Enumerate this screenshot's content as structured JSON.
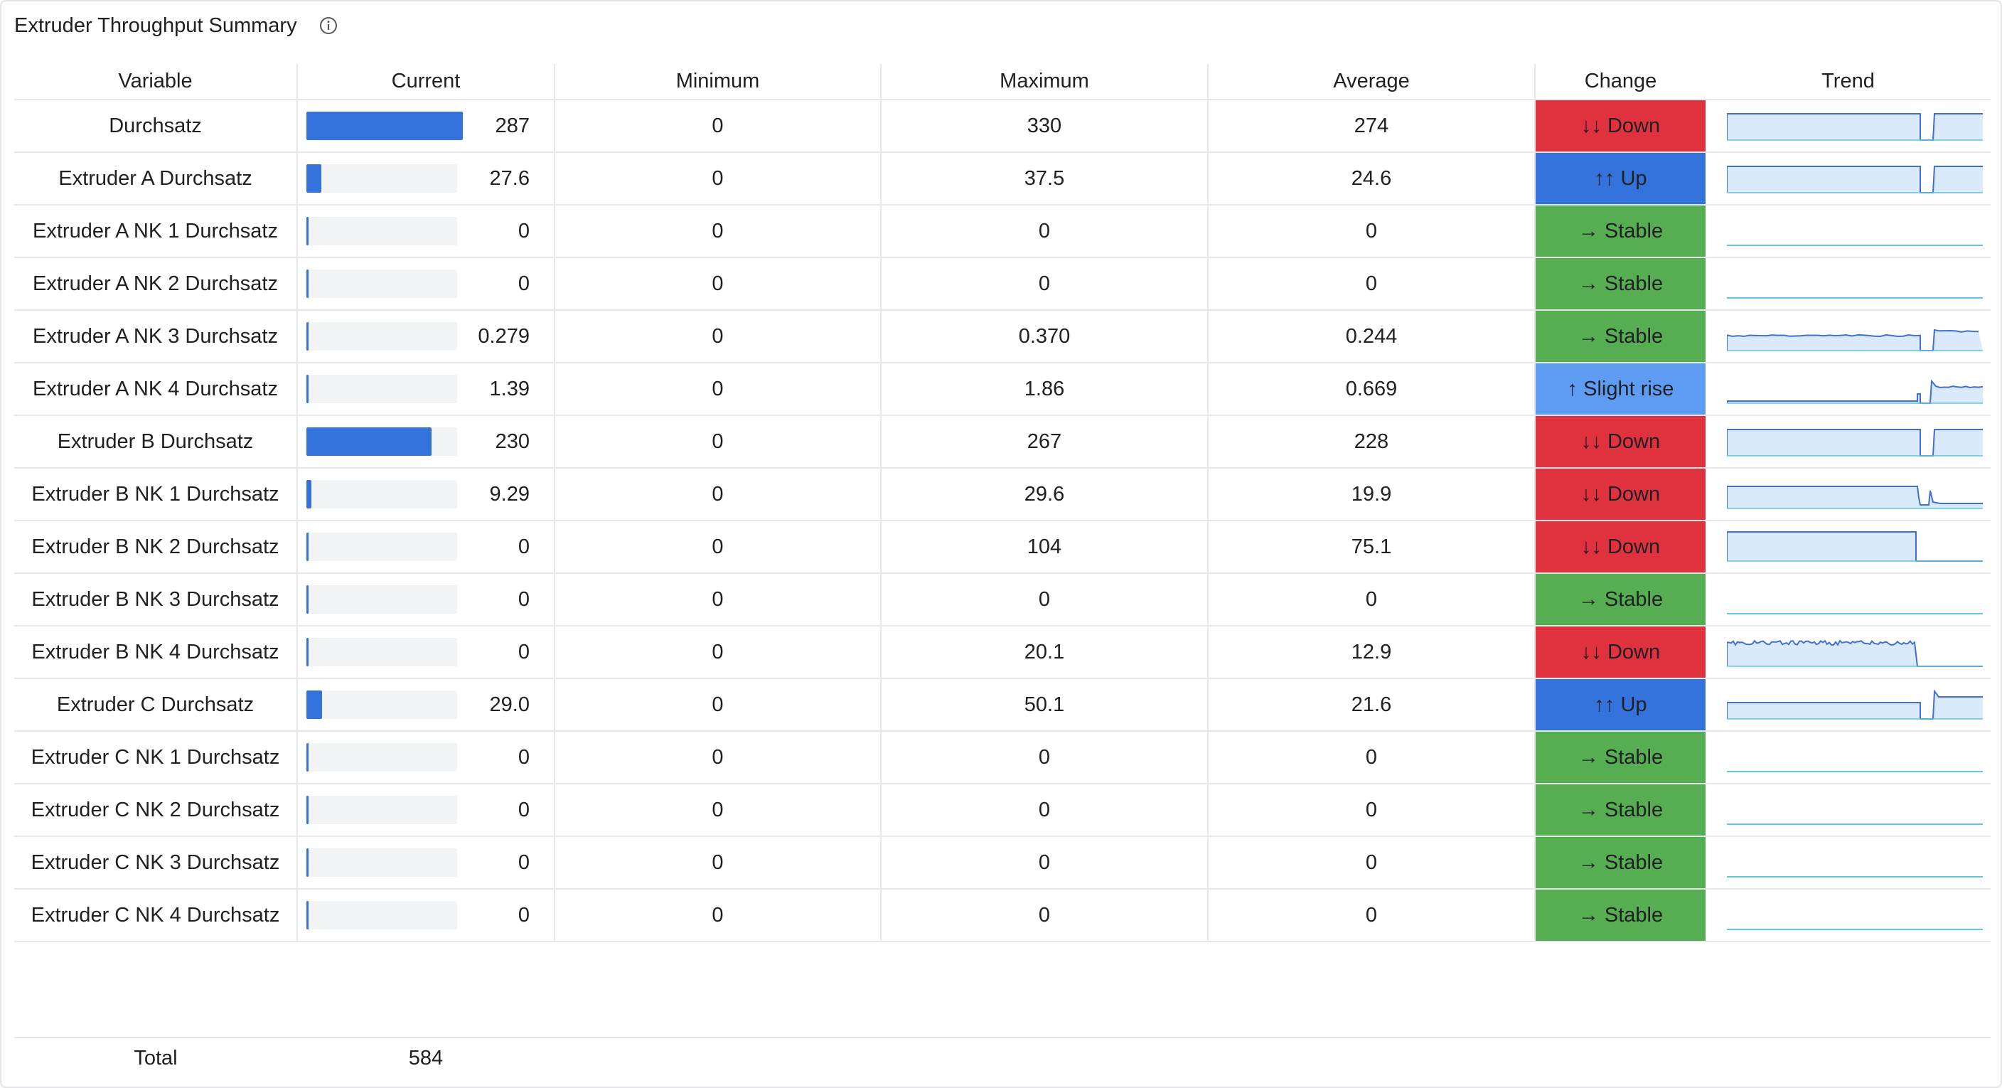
{
  "panel": {
    "title": "Extruder Throughput Summary",
    "info_icon": "info-circle-icon"
  },
  "columns": [
    "Variable",
    "Current",
    "Minimum",
    "Maximum",
    "Average",
    "Change",
    "Trend"
  ],
  "colors": {
    "bar": "#3373db",
    "bar_track": "#f2f3f4",
    "down": "#e0313f",
    "up": "#3373db",
    "stable": "#56ad52",
    "slight_rise": "#5d9cf2",
    "spark_line_active": "#3f6fd8",
    "spark_fill": "#dbeafa",
    "spark_line_flat": "#64c3df"
  },
  "scale_max": 287,
  "rows": [
    {
      "variable": "Durchsatz",
      "current": "287",
      "current_value": 287,
      "minimum": "0",
      "maximum": "330",
      "average": "274",
      "change": "↓↓ Down",
      "change_type": "down",
      "trend": "full"
    },
    {
      "variable": "Extruder A Durchsatz",
      "current": "27.6",
      "current_value": 27.6,
      "minimum": "0",
      "maximum": "37.5",
      "average": "24.6",
      "change": "↑↑ Up",
      "change_type": "up",
      "trend": "full"
    },
    {
      "variable": "Extruder A NK 1 Durchsatz",
      "current": "0",
      "current_value": 0,
      "minimum": "0",
      "maximum": "0",
      "average": "0",
      "change": "→ Stable",
      "change_type": "stable",
      "trend": "flat"
    },
    {
      "variable": "Extruder A NK 2 Durchsatz",
      "current": "0",
      "current_value": 0,
      "minimum": "0",
      "maximum": "0",
      "average": "0",
      "change": "→ Stable",
      "change_type": "stable",
      "trend": "flat"
    },
    {
      "variable": "Extruder A NK 3 Durchsatz",
      "current": "0.279",
      "current_value": 0.279,
      "minimum": "0",
      "maximum": "0.370",
      "average": "0.244",
      "change": "→ Stable",
      "change_type": "stable",
      "trend": "mid"
    },
    {
      "variable": "Extruder A NK 4 Durchsatz",
      "current": "1.39",
      "current_value": 1.39,
      "minimum": "0",
      "maximum": "1.86",
      "average": "0.669",
      "change": "↑ Slight rise",
      "change_type": "slight_rise",
      "trend": "rise"
    },
    {
      "variable": "Extruder B Durchsatz",
      "current": "230",
      "current_value": 230,
      "minimum": "0",
      "maximum": "267",
      "average": "228",
      "change": "↓↓ Down",
      "change_type": "down",
      "trend": "full"
    },
    {
      "variable": "Extruder B NK 1 Durchsatz",
      "current": "9.29",
      "current_value": 9.29,
      "minimum": "0",
      "maximum": "29.6",
      "average": "19.9",
      "change": "↓↓ Down",
      "change_type": "down",
      "trend": "drop_low"
    },
    {
      "variable": "Extruder B NK 2 Durchsatz",
      "current": "0",
      "current_value": 0,
      "minimum": "0",
      "maximum": "104",
      "average": "75.1",
      "change": "↓↓ Down",
      "change_type": "down",
      "trend": "drop_zero"
    },
    {
      "variable": "Extruder B NK 3 Durchsatz",
      "current": "0",
      "current_value": 0,
      "minimum": "0",
      "maximum": "0",
      "average": "0",
      "change": "→ Stable",
      "change_type": "stable",
      "trend": "flat"
    },
    {
      "variable": "Extruder B NK 4 Durchsatz",
      "current": "0",
      "current_value": 0,
      "minimum": "0",
      "maximum": "20.1",
      "average": "12.9",
      "change": "↓↓ Down",
      "change_type": "down",
      "trend": "noisy_drop"
    },
    {
      "variable": "Extruder C Durchsatz",
      "current": "29.0",
      "current_value": 29.0,
      "minimum": "0",
      "maximum": "50.1",
      "average": "21.6",
      "change": "↑↑ Up",
      "change_type": "up",
      "trend": "rise_high"
    },
    {
      "variable": "Extruder C NK 1 Durchsatz",
      "current": "0",
      "current_value": 0,
      "minimum": "0",
      "maximum": "0",
      "average": "0",
      "change": "→ Stable",
      "change_type": "stable",
      "trend": "flat"
    },
    {
      "variable": "Extruder C NK 2 Durchsatz",
      "current": "0",
      "current_value": 0,
      "minimum": "0",
      "maximum": "0",
      "average": "0",
      "change": "→ Stable",
      "change_type": "stable",
      "trend": "flat"
    },
    {
      "variable": "Extruder C NK 3 Durchsatz",
      "current": "0",
      "current_value": 0,
      "minimum": "0",
      "maximum": "0",
      "average": "0",
      "change": "→ Stable",
      "change_type": "stable",
      "trend": "flat"
    },
    {
      "variable": "Extruder C NK 4 Durchsatz",
      "current": "0",
      "current_value": 0,
      "minimum": "0",
      "maximum": "0",
      "average": "0",
      "change": "→ Stable",
      "change_type": "stable",
      "trend": "flat"
    }
  ],
  "footer": {
    "label": "Total",
    "value": "584"
  }
}
